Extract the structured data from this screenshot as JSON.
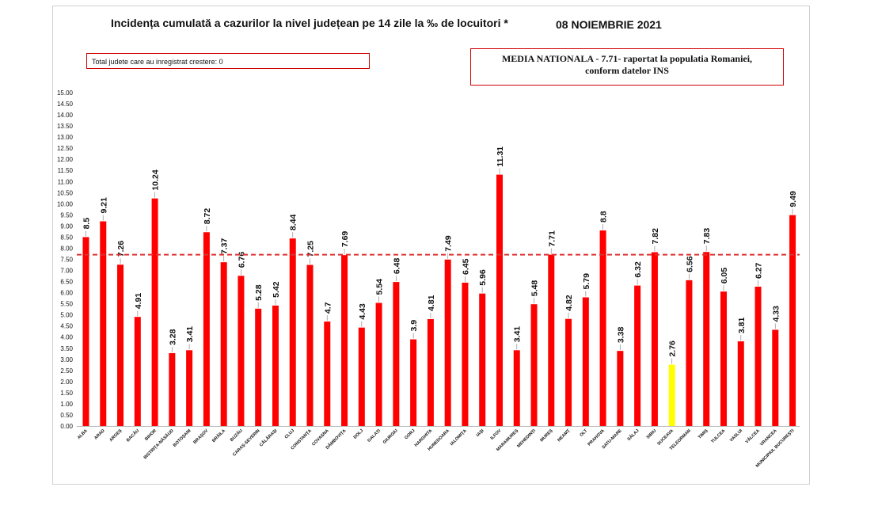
{
  "header": {
    "title": "Incidența cumulată a cazurilor la nivel județean pe 14 zile la ‰ de locuitori *",
    "date": "08 NOIEMBRIE 2021"
  },
  "info_boxes": {
    "left_text": "Total judete care au inregistrat crestere: 0",
    "right_line1": "MEDIA NATIONALA - 7.71-  raportat la populatia  Romaniei,",
    "right_line2": "conform datelor INS"
  },
  "colors": {
    "bar": "#ff0000",
    "highlight_bar": "#ffff00",
    "average_line": "#e03030",
    "box_border": "#d00000"
  },
  "chart_data": {
    "type": "bar",
    "categories": [
      "ALBA",
      "ARAD",
      "ARGEȘ",
      "BACĂU",
      "BIHOR",
      "BISTRIȚA-NĂSĂUD",
      "BOTOȘANI",
      "BRAȘOV",
      "BRĂILA",
      "BUZĂU",
      "CARAȘ-SEVERIN",
      "CĂLĂRAȘI",
      "CLUJ",
      "CONSTANȚA",
      "COVASNA",
      "DÂMBOVIȚA",
      "DOLJ",
      "GALAȚI",
      "GIURGIU",
      "GORJ",
      "HARGHITA",
      "HUNEDOARA",
      "IALOMIȚA",
      "IAȘI",
      "ILFOV",
      "MARAMUREȘ",
      "MEHEDINȚI",
      "MUREȘ",
      "NEAMȚ",
      "OLT",
      "PRAHOVA",
      "SATU-MARE",
      "SĂLAJ",
      "SIBIU",
      "SUCEAVA",
      "TELEORMAN",
      "TIMIȘ",
      "TULCEA",
      "VASLUI",
      "VÂLCEA",
      "VRANCEA",
      "MUNICIPIUL BUCUREȘTI"
    ],
    "values": [
      8.5,
      9.21,
      7.26,
      4.91,
      10.24,
      3.28,
      3.41,
      8.72,
      7.37,
      6.76,
      5.28,
      5.42,
      8.44,
      7.25,
      4.7,
      7.69,
      4.43,
      5.54,
      6.48,
      3.9,
      4.81,
      7.49,
      6.45,
      5.96,
      11.31,
      3.41,
      5.48,
      7.71,
      4.82,
      5.79,
      8.8,
      3.38,
      6.32,
      7.82,
      2.76,
      6.56,
      7.83,
      6.05,
      3.81,
      6.27,
      4.33,
      9.49
    ],
    "value_labels": [
      "8.5",
      "9.21",
      "7.26",
      "4.91",
      "10.24",
      "3.28",
      "3.41",
      "8.72",
      "7.37",
      "6.76",
      "5.28",
      "5.42",
      "8.44",
      "7.25",
      "4.7",
      "7.69",
      "4.43",
      "5.54",
      "6.48",
      "3.9",
      "4.81",
      "7.49",
      "6.45",
      "5.96",
      "11.31",
      "3.41",
      "5.48",
      "7.71",
      "4.82",
      "5.79",
      "8.8",
      "3.38",
      "6.32",
      "7.82",
      "2.76",
      "6.56",
      "7.83",
      "6.05",
      "3.81",
      "6.27",
      "4.33",
      "9.49"
    ],
    "highlight_category": "SUCEAVA",
    "average": 7.71,
    "ylim": [
      0,
      15
    ],
    "ytick_labels": [
      "0.00",
      "0.50",
      "1.00",
      "1.50",
      "2.00",
      "2.50",
      "3.00",
      "3.50",
      "4.00",
      "4.50",
      "5.00",
      "5.50",
      "6.00",
      "6.50",
      "7.00",
      "7.50",
      "8.00",
      "8.50",
      "9.00",
      "9.50",
      "10.00",
      "10.50",
      "11.00",
      "11.50",
      "12.00",
      "12.50",
      "13.00",
      "13.50",
      "14.00",
      "14.50",
      "15.00"
    ],
    "grid": false,
    "legend": "none"
  }
}
